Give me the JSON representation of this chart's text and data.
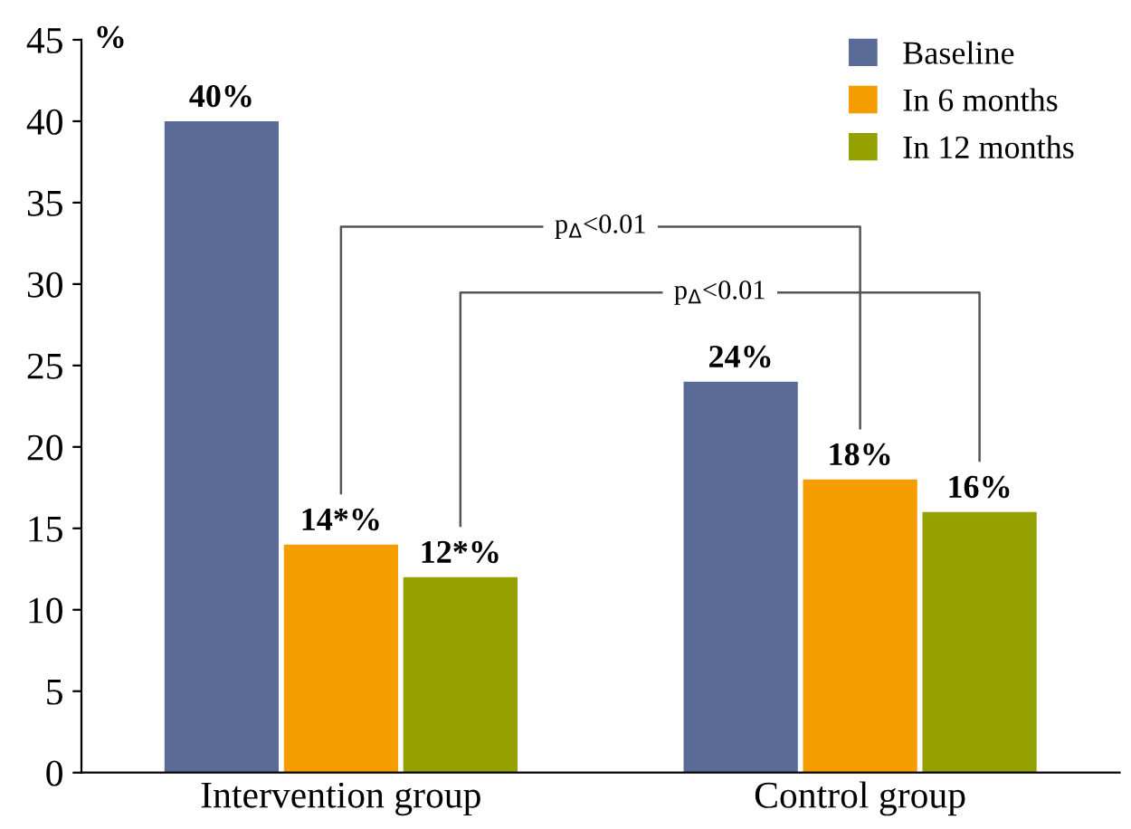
{
  "chart_data": {
    "type": "bar",
    "ylabel": "%",
    "categories": [
      "Intervention group",
      "Control group"
    ],
    "series": [
      {
        "name": "Baseline",
        "color": "#596b96",
        "values": [
          40,
          24
        ],
        "value_labels": [
          "40%",
          "24%"
        ]
      },
      {
        "name": "In 6 months",
        "color": "#f59d00",
        "values": [
          14,
          18
        ],
        "value_labels": [
          "14*%",
          "18%"
        ]
      },
      {
        "name": "In 12 months",
        "color": "#94a000",
        "values": [
          12,
          16
        ],
        "value_labels": [
          "12*%",
          "16%"
        ]
      }
    ],
    "ylim": [
      0,
      45
    ],
    "yticks": [
      0,
      5,
      10,
      15,
      20,
      25,
      30,
      35,
      40,
      45
    ],
    "legend": "top right",
    "annotations": [
      "p$_{Δ}$<0.01",
      "p$_{Δ}$<0.01"
    ]
  }
}
